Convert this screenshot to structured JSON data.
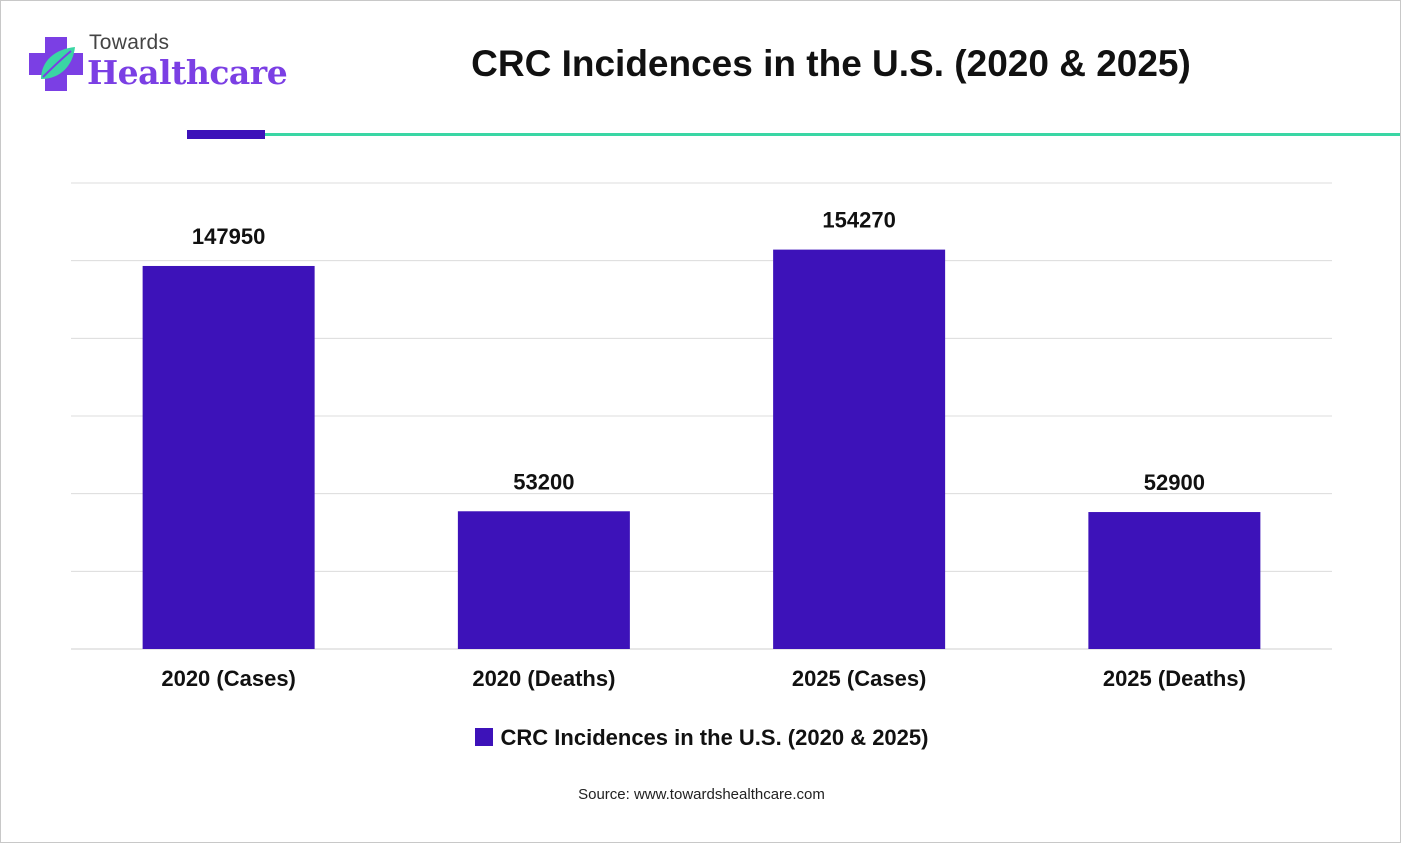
{
  "brand": {
    "top_text": "Towards",
    "main_text": "Healthcare"
  },
  "colors": {
    "bar": "#3d12b9",
    "accent_rule": "#3d12b9",
    "teal_rule": "#3ad6a4",
    "logo": "#7b3fe4"
  },
  "chart_data": {
    "type": "bar",
    "title": "CRC Incidences in the U.S. (2020 & 2025)",
    "categories": [
      "2020 (Cases)",
      "2020 (Deaths)",
      "2025 (Cases)",
      "2025 (Deaths)"
    ],
    "series": [
      {
        "name": "CRC Incidences in the U.S. (2020 & 2025)",
        "values": [
          147950,
          53200,
          154270,
          52900
        ]
      }
    ],
    "data_labels": [
      "147950",
      "53200",
      "154270",
      "52900"
    ],
    "xlabel": "",
    "ylabel": "",
    "grid": true,
    "legend_position": "bottom"
  },
  "footer": {
    "source": "Source: www.towardshealthcare.com"
  }
}
